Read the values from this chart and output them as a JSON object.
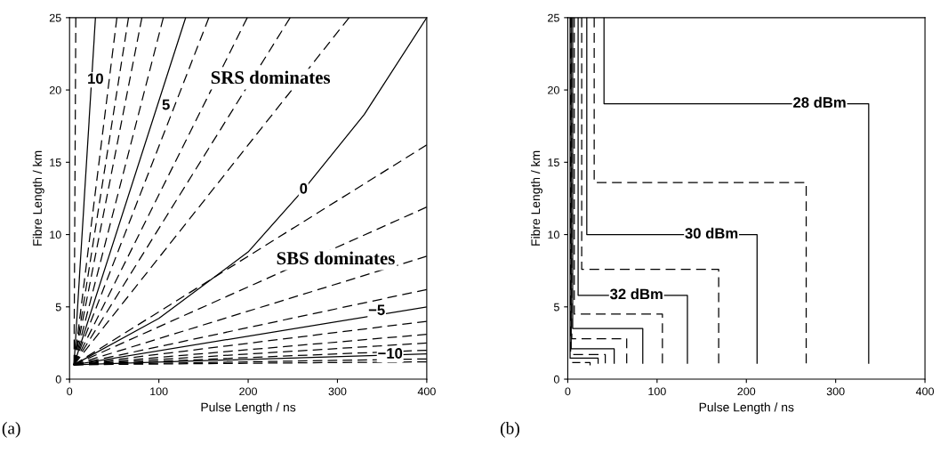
{
  "chart_data": [
    {
      "type": "line",
      "xlabel": "Pulse Length / ns",
      "ylabel": "Fibre Length / km",
      "xlim": [
        0,
        400
      ],
      "ylim": [
        0,
        25
      ],
      "xticks": [
        0,
        100,
        200,
        300,
        400
      ],
      "yticks": [
        0,
        5,
        10,
        15,
        20,
        25
      ],
      "annotations": [
        "(a)",
        "SRS dominates",
        "SBS dominates",
        {
          "text": "10",
          "x": 29,
          "y": 20.7
        },
        {
          "text": "5",
          "x": 108,
          "y": 18.9
        },
        {
          "text": "0",
          "x": 262,
          "y": 13.1
        },
        {
          "text": "−5",
          "x": 344,
          "y": 4.7
        },
        {
          "text": "−10",
          "x": 359,
          "y": 1.7
        }
      ],
      "series": [
        {
          "color": "#000000",
          "line_style": "dashed",
          "x": [
            5,
            7
          ],
          "values": [
            1,
            25
          ]
        },
        {
          "color": "#000000",
          "line_style": "solid",
          "x": [
            5,
            29
          ],
          "values": [
            1,
            25
          ]
        },
        {
          "color": "#000000",
          "line_style": "dashed",
          "x": [
            5,
            53
          ],
          "values": [
            1,
            25
          ]
        },
        {
          "color": "#000000",
          "line_style": "dashed",
          "x": [
            5,
            66
          ],
          "values": [
            1,
            25
          ]
        },
        {
          "color": "#000000",
          "line_style": "dashed",
          "x": [
            5,
            81
          ],
          "values": [
            1,
            25
          ]
        },
        {
          "color": "#000000",
          "line_style": "dashed",
          "x": [
            5,
            105
          ],
          "values": [
            1,
            25
          ]
        },
        {
          "color": "#000000",
          "line_style": "solid",
          "x": [
            5,
            130
          ],
          "values": [
            1,
            25
          ]
        },
        {
          "color": "#000000",
          "line_style": "dashed",
          "x": [
            5,
            156
          ],
          "values": [
            1,
            25
          ]
        },
        {
          "color": "#000000",
          "line_style": "dashed",
          "x": [
            5,
            199
          ],
          "values": [
            1,
            25
          ]
        },
        {
          "color": "#000000",
          "line_style": "dashed",
          "x": [
            5,
            247
          ],
          "values": [
            1,
            25
          ]
        },
        {
          "color": "#000000",
          "line_style": "dashed",
          "x": [
            5,
            313
          ],
          "values": [
            1,
            25
          ]
        },
        {
          "color": "#000000",
          "line_style": "solid",
          "x": [
            5,
            100,
            200,
            262,
            330,
            400
          ],
          "values": [
            1,
            4.2,
            8.8,
            13.1,
            18.3,
            25
          ]
        },
        {
          "color": "#000000",
          "line_style": "dashed",
          "x": [
            5,
            400
          ],
          "values": [
            1,
            16.2
          ]
        },
        {
          "color": "#000000",
          "line_style": "dashed",
          "x": [
            5,
            400
          ],
          "values": [
            1,
            11.9
          ]
        },
        {
          "color": "#000000",
          "line_style": "dashed",
          "x": [
            5,
            400
          ],
          "values": [
            1,
            8.5
          ]
        },
        {
          "color": "#000000",
          "line_style": "dashed",
          "x": [
            5,
            400
          ],
          "values": [
            1,
            6.2
          ]
        },
        {
          "color": "#000000",
          "line_style": "solid",
          "x": [
            5,
            400
          ],
          "values": [
            1,
            5.0
          ]
        },
        {
          "color": "#000000",
          "line_style": "dashed",
          "x": [
            5,
            400
          ],
          "values": [
            1,
            4.0
          ]
        },
        {
          "color": "#000000",
          "line_style": "dashed",
          "x": [
            5,
            400
          ],
          "values": [
            1,
            3.1
          ]
        },
        {
          "color": "#000000",
          "line_style": "dashed",
          "x": [
            5,
            400
          ],
          "values": [
            1,
            2.5
          ]
        },
        {
          "color": "#000000",
          "line_style": "dashed",
          "x": [
            5,
            400
          ],
          "values": [
            1,
            2.0
          ]
        },
        {
          "color": "#000000",
          "line_style": "solid",
          "x": [
            5,
            400
          ],
          "values": [
            1,
            1.75
          ]
        },
        {
          "color": "#000000",
          "line_style": "dashed",
          "x": [
            5,
            400
          ],
          "values": [
            1,
            1.4
          ]
        },
        {
          "color": "#000000",
          "line_style": "dashed",
          "x": [
            5,
            400
          ],
          "values": [
            1,
            1.2
          ]
        }
      ]
    },
    {
      "type": "line",
      "xlabel": "Pulse Length / ns",
      "ylabel": "Fibre Length / km",
      "xlim": [
        0,
        400
      ],
      "ylim": [
        0,
        25
      ],
      "xticks": [
        0,
        100,
        200,
        300,
        400
      ],
      "yticks": [
        0,
        5,
        10,
        15,
        20,
        25
      ],
      "annotations": [
        "(b)",
        {
          "text": "28 dBm",
          "x": 282,
          "y": 19.05
        },
        {
          "text": "30 dBm",
          "x": 161,
          "y": 10.0
        },
        {
          "text": "32 dBm",
          "x": 77,
          "y": 5.8
        }
      ],
      "series": [
        {
          "color": "#000000",
          "line_style": "solid",
          "x": [
            40.6,
            40.6,
            337,
            337
          ],
          "values": [
            25,
            19.05,
            19.05,
            1.1
          ]
        },
        {
          "color": "#000000",
          "line_style": "dashed",
          "x": [
            29.6,
            29.6,
            267,
            267
          ],
          "values": [
            25,
            13.6,
            13.6,
            1.1
          ]
        },
        {
          "color": "#000000",
          "line_style": "solid",
          "x": [
            21.3,
            21.3,
            212,
            212
          ],
          "values": [
            25,
            10.0,
            10.0,
            1.1
          ]
        },
        {
          "color": "#000000",
          "line_style": "dashed",
          "x": [
            15.6,
            15.6,
            169,
            169
          ],
          "values": [
            25,
            7.6,
            7.6,
            1.1
          ]
        },
        {
          "color": "#000000",
          "line_style": "solid",
          "x": [
            11.6,
            11.6,
            134,
            134
          ],
          "values": [
            25,
            5.8,
            5.8,
            1.1
          ]
        },
        {
          "color": "#000000",
          "line_style": "dashed",
          "x": [
            7.3,
            7.3,
            106,
            106
          ],
          "values": [
            25,
            4.5,
            4.5,
            1.1
          ]
        },
        {
          "color": "#000000",
          "line_style": "solid",
          "x": [
            5.5,
            5.5,
            84,
            84
          ],
          "values": [
            25,
            3.5,
            3.5,
            1.1
          ]
        },
        {
          "color": "#000000",
          "line_style": "dashed",
          "x": [
            4.5,
            4.5,
            66,
            66
          ],
          "values": [
            25,
            2.8,
            2.8,
            1.1
          ]
        },
        {
          "color": "#000000",
          "line_style": "solid",
          "x": [
            3.8,
            3.8,
            52,
            52
          ],
          "values": [
            25,
            2.1,
            2.1,
            1.1
          ]
        },
        {
          "color": "#000000",
          "line_style": "dashed",
          "x": [
            3.2,
            3.2,
            42,
            42
          ],
          "values": [
            25,
            1.7,
            1.7,
            1.1
          ]
        },
        {
          "color": "#000000",
          "line_style": "solid",
          "x": [
            2.6,
            2.6,
            34,
            34
          ],
          "values": [
            25,
            1.45,
            1.45,
            1.1
          ]
        },
        {
          "color": "#000000",
          "line_style": "dashed",
          "x": [
            5,
            25,
            25
          ],
          "values": [
            1.15,
            1.15,
            0.95
          ]
        }
      ]
    }
  ]
}
